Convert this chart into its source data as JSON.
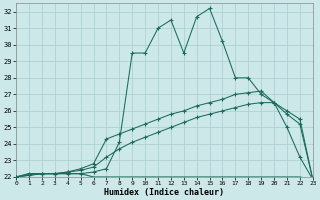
{
  "xlabel": "Humidex (Indice chaleur)",
  "bg_color": "#cce8e8",
  "grid_color": "#aacece",
  "line_color": "#1a6b5a",
  "xlim": [
    0,
    23
  ],
  "ylim": [
    22,
    32.5
  ],
  "xticks": [
    0,
    1,
    2,
    3,
    4,
    5,
    6,
    7,
    8,
    9,
    10,
    11,
    12,
    13,
    14,
    15,
    16,
    17,
    18,
    19,
    20,
    21,
    22,
    23
  ],
  "yticks": [
    22,
    23,
    24,
    25,
    26,
    27,
    28,
    29,
    30,
    31,
    32
  ],
  "flat_line": {
    "x": [
      0,
      1,
      2,
      3,
      4,
      5,
      6,
      7,
      8,
      9,
      10,
      11,
      12,
      13,
      14,
      15,
      16,
      17,
      18,
      19,
      20,
      21,
      22,
      23
    ],
    "y": [
      22.0,
      22.2,
      22.2,
      22.2,
      22.2,
      22.2,
      22.0,
      22.0,
      22.0,
      22.0,
      22.0,
      22.0,
      22.0,
      22.0,
      22.0,
      22.0,
      22.0,
      22.0,
      22.0,
      22.0,
      22.0,
      22.0,
      22.0,
      21.85
    ]
  },
  "main_line": {
    "x": [
      0,
      1,
      2,
      3,
      4,
      5,
      6,
      7,
      8,
      9,
      10,
      11,
      12,
      13,
      14,
      15,
      16,
      17,
      18,
      19,
      20,
      21,
      22,
      23
    ],
    "y": [
      22.0,
      22.2,
      22.2,
      22.2,
      22.2,
      22.2,
      22.3,
      22.5,
      24.1,
      29.5,
      29.5,
      31.0,
      31.5,
      29.5,
      31.7,
      32.2,
      30.2,
      28.0,
      28.0,
      27.0,
      26.5,
      25.0,
      23.2,
      21.85
    ]
  },
  "upper_diag": {
    "x": [
      0,
      1,
      2,
      3,
      4,
      5,
      6,
      7,
      8,
      9,
      10,
      11,
      12,
      13,
      14,
      15,
      16,
      17,
      18,
      19,
      20,
      21,
      22,
      23
    ],
    "y": [
      22.0,
      22.1,
      22.2,
      22.2,
      22.3,
      22.5,
      22.8,
      24.3,
      24.6,
      24.9,
      25.2,
      25.5,
      25.8,
      26.0,
      26.3,
      26.5,
      26.7,
      27.0,
      27.1,
      27.2,
      26.5,
      26.0,
      25.5,
      21.85
    ]
  },
  "lower_diag": {
    "x": [
      0,
      1,
      2,
      3,
      4,
      5,
      6,
      7,
      8,
      9,
      10,
      11,
      12,
      13,
      14,
      15,
      16,
      17,
      18,
      19,
      20,
      21,
      22,
      23
    ],
    "y": [
      22.0,
      22.1,
      22.2,
      22.2,
      22.3,
      22.4,
      22.6,
      23.2,
      23.7,
      24.1,
      24.4,
      24.7,
      25.0,
      25.3,
      25.6,
      25.8,
      26.0,
      26.2,
      26.4,
      26.5,
      26.5,
      25.8,
      25.2,
      21.85
    ]
  }
}
